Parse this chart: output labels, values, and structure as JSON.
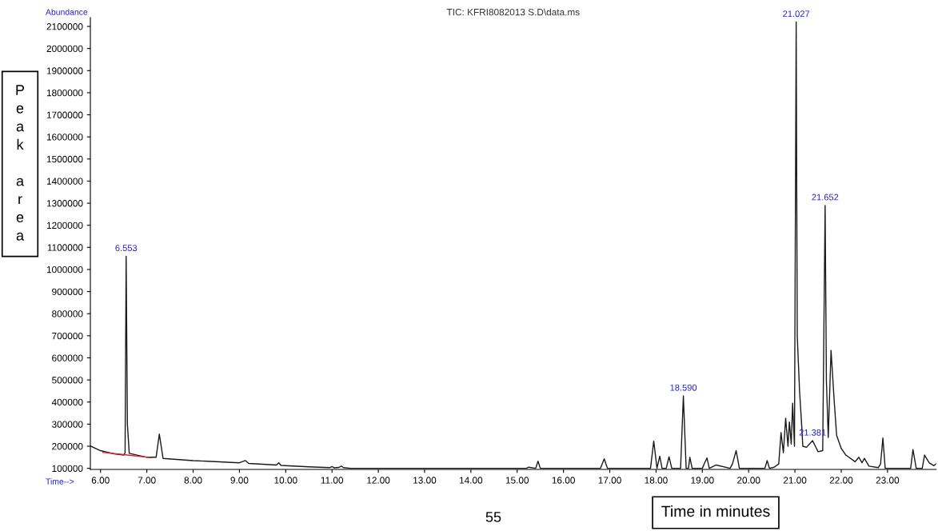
{
  "chart_data": {
    "type": "line",
    "title": "TIC: KFRI8082013 S.D\\data.ms",
    "xlabel": "Time in minutes",
    "ylabel": "Peak area",
    "annotations": [
      "Abundance",
      "Time-->",
      "55",
      {
        "text": "6.553",
        "x": 6.553,
        "y": 1060000
      },
      {
        "text": "18.590",
        "x": 18.59,
        "y": 428000
      },
      {
        "text": "21.027",
        "x": 21.027,
        "y": 2120000
      },
      {
        "text": "21.381",
        "x": 21.381,
        "y": 225000
      },
      {
        "text": "21.652",
        "x": 21.652,
        "y": 1290000
      }
    ],
    "series": [
      {
        "color": "#1a1a1a",
        "x": [
          5.78,
          6.0,
          6.3,
          6.5,
          6.53,
          6.553,
          6.58,
          6.62,
          7.0,
          7.2,
          7.27,
          7.35,
          8.0,
          9.0,
          9.13,
          9.2,
          9.8,
          9.85,
          9.9,
          10.5,
          10.95,
          11.0,
          11.05,
          11.15,
          11.2,
          11.25,
          11.4,
          15.2,
          15.25,
          15.4,
          15.45,
          15.5,
          16.8,
          16.88,
          16.95,
          17.88,
          17.95,
          18.02,
          18.08,
          18.13,
          18.22,
          18.28,
          18.34,
          18.53,
          18.59,
          18.65,
          18.7,
          18.73,
          18.78,
          19.0,
          19.05,
          19.1,
          19.15,
          19.3,
          19.6,
          19.65,
          19.73,
          19.8,
          20.35,
          20.4,
          20.45,
          20.55,
          20.65,
          20.7,
          20.75,
          20.8,
          20.85,
          20.88,
          20.92,
          20.95,
          20.99,
          21.027,
          21.05,
          21.1,
          21.15,
          21.17,
          21.25,
          21.381,
          21.5,
          21.6,
          21.652,
          21.68,
          21.72,
          21.78,
          21.85,
          21.9,
          22.0,
          22.05,
          22.1,
          22.3,
          22.38,
          22.45,
          22.5,
          22.6,
          22.8,
          22.85,
          22.9,
          22.95,
          23.5,
          23.55,
          23.62,
          23.75,
          23.8,
          23.9,
          24.0,
          24.05
        ],
        "values": [
          201000,
          180000,
          165000,
          160000,
          170000,
          1060000,
          300000,
          168000,
          150000,
          150000,
          255000,
          145000,
          135000,
          125000,
          135000,
          122000,
          115000,
          125000,
          113000,
          107000,
          103000,
          108000,
          102000,
          104000,
          110000,
          103000,
          100000,
          100000,
          105000,
          100000,
          132000,
          100000,
          100000,
          143000,
          100000,
          100000,
          223000,
          100000,
          155000,
          100000,
          100000,
          152000,
          100000,
          100000,
          428000,
          100000,
          100000,
          150000,
          100000,
          100000,
          125000,
          147000,
          100000,
          115000,
          100000,
          120000,
          180000,
          100000,
          100000,
          135000,
          100000,
          105000,
          120000,
          262000,
          170000,
          327000,
          200000,
          310000,
          210000,
          395000,
          200000,
          2120000,
          700000,
          450000,
          280000,
          200000,
          195000,
          225000,
          175000,
          180000,
          1290000,
          494000,
          240000,
          634000,
          400000,
          250000,
          190000,
          175000,
          160000,
          130000,
          150000,
          125000,
          145000,
          110000,
          103000,
          120000,
          237000,
          100000,
          100000,
          185000,
          100000,
          100000,
          160000,
          125000,
          112000,
          120000
        ]
      },
      {
        "color": "#e02020",
        "x": [
          6.05,
          6.5,
          7.1
        ],
        "values": [
          172000,
          162000,
          148000
        ]
      }
    ],
    "xlim": [
      5.78,
      24.05
    ],
    "ylim": [
      95000,
      2140000
    ],
    "xticks": [
      {
        "value": 6,
        "label": "6.00"
      },
      {
        "value": 7,
        "label": "7.00"
      },
      {
        "value": 8,
        "label": "8.00"
      },
      {
        "value": 9,
        "label": "9.00"
      },
      {
        "value": 10,
        "label": "10.00"
      },
      {
        "value": 11,
        "label": "11.00"
      },
      {
        "value": 12,
        "label": "12.00"
      },
      {
        "value": 13,
        "label": "13.00"
      },
      {
        "value": 14,
        "label": "14.00"
      },
      {
        "value": 15,
        "label": "15.00"
      },
      {
        "value": 16,
        "label": "16.00"
      },
      {
        "value": 17,
        "label": "17.00"
      },
      {
        "value": 18,
        "label": "18.00"
      },
      {
        "value": 19,
        "label": "19.00"
      },
      {
        "value": 20,
        "label": "20.00"
      },
      {
        "value": 21,
        "label": "21.00"
      },
      {
        "value": 22,
        "label": "22.00"
      },
      {
        "value": 23,
        "label": "23.00"
      }
    ],
    "yticks": [
      100000,
      200000,
      300000,
      400000,
      500000,
      600000,
      700000,
      800000,
      900000,
      1000000,
      1100000,
      1200000,
      1300000,
      1400000,
      1500000,
      1600000,
      1700000,
      1800000,
      1900000,
      2000000,
      2100000
    ],
    "grid": false,
    "legend": false,
    "marker": "none",
    "line_style": "solid"
  }
}
